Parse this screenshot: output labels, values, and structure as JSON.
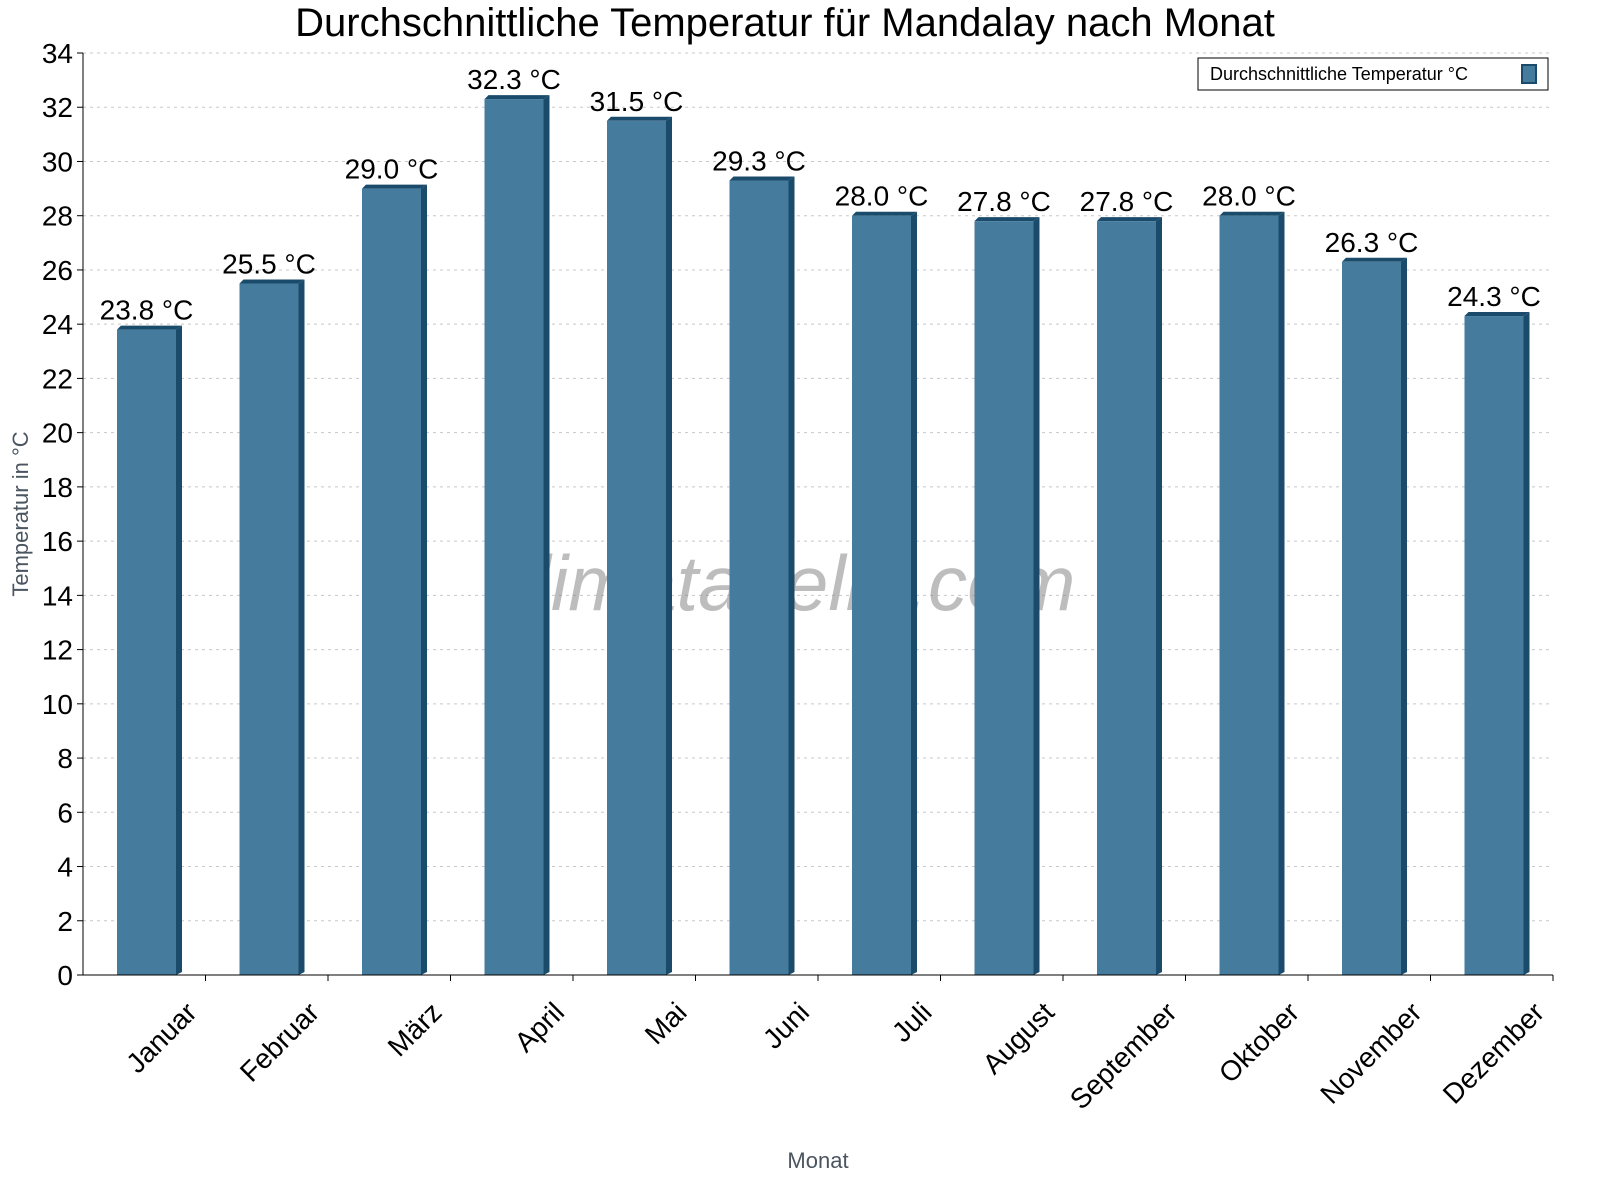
{
  "chart_data": {
    "type": "bar",
    "title": "Durchschnittliche Temperatur für Mandalay nach Monat",
    "xlabel": "Monat",
    "ylabel": "Temperatur in °C",
    "ylim": [
      0,
      34
    ],
    "ytick_step": 2,
    "grid": true,
    "legend_position": "top-right",
    "categories": [
      "Januar",
      "Februar",
      "März",
      "April",
      "Mai",
      "Juni",
      "Juli",
      "August",
      "September",
      "Oktober",
      "November",
      "Dezember"
    ],
    "series": [
      {
        "name": "Durchschnittliche Temperatur °C",
        "values": [
          23.8,
          25.5,
          29.0,
          32.3,
          31.5,
          29.3,
          28.0,
          27.8,
          27.8,
          28.0,
          26.3,
          24.3
        ],
        "labels": [
          "23.8 °C",
          "25.5 °C",
          "29.0 °C",
          "32.3 °C",
          "31.5 °C",
          "29.3 °C",
          "28.0 °C",
          "27.8 °C",
          "27.8 °C",
          "28.0 °C",
          "26.3 °C",
          "24.3 °C"
        ]
      }
    ],
    "colors": {
      "bar": "#457b9d",
      "bar_shade": "#1b4b6b"
    },
    "watermark": "klimatabelle.com"
  }
}
